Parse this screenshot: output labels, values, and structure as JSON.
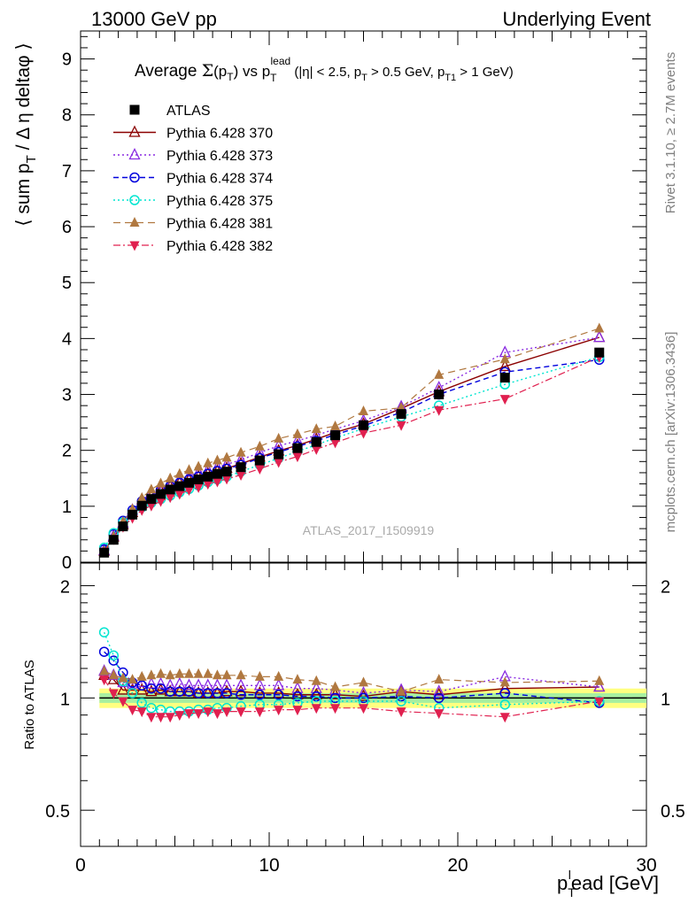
{
  "header": {
    "left": "13000 GeV pp",
    "right": "Underlying Event"
  },
  "side_labels": {
    "rivet": "Rivet 3.1.10, ≥ 2.7M events",
    "mcplots": "mcplots.cern.ch [arXiv:1306.3436]"
  },
  "chart_data": [
    {
      "type": "scatter",
      "title_parts": {
        "a": "Average ",
        "sigma": "Σ",
        "b": "(p",
        "b_sub": "T",
        "c": ") vs p",
        "c_sub": "T",
        "c_sup": "lead",
        "d": " (|η| < 2.5, p",
        "d_sub": "T",
        "e": " > 0.5 GeV, p",
        "e_sub": "T1",
        "f": " > 1 GeV)"
      },
      "ylabel_parts": {
        "a": "⟨ sum p",
        "sub": "T",
        "b": " / Δ η deltaφ ⟩"
      },
      "watermark": "ATLAS_2017_I1509919",
      "xlim": [
        0,
        30
      ],
      "ylim": [
        0,
        9.5
      ],
      "y_ticks": [
        "0",
        "1",
        "2",
        "3",
        "4",
        "5",
        "6",
        "7",
        "8",
        "9"
      ],
      "legend_position": "top-left",
      "x": [
        1.25,
        1.75,
        2.25,
        2.75,
        3.25,
        3.75,
        4.25,
        4.75,
        5.25,
        5.75,
        6.25,
        6.75,
        7.25,
        7.75,
        8.5,
        9.5,
        10.5,
        11.5,
        12.5,
        13.5,
        15,
        17,
        19,
        22.5,
        27.5
      ],
      "series": [
        {
          "name": "ATLAS",
          "color": "#000000",
          "marker": "filled-square",
          "values": [
            0.17,
            0.4,
            0.64,
            0.85,
            1.01,
            1.13,
            1.22,
            1.3,
            1.36,
            1.42,
            1.48,
            1.53,
            1.58,
            1.62,
            1.7,
            1.82,
            1.93,
            2.04,
            2.15,
            2.27,
            2.45,
            2.65,
            3.0,
            3.3,
            3.75
          ]
        },
        {
          "name": "Pythia 6.428 370",
          "color": "#8b0000",
          "marker": "open-triangle-up",
          "values": [
            0.2,
            0.45,
            0.67,
            0.89,
            1.06,
            1.18,
            1.28,
            1.35,
            1.42,
            1.48,
            1.53,
            1.58,
            1.63,
            1.68,
            1.76,
            1.88,
            1.99,
            2.09,
            2.2,
            2.32,
            2.47,
            2.75,
            3.05,
            3.5,
            4.02
          ]
        },
        {
          "name": "Pythia 6.428 373",
          "color": "#8a2be2",
          "marker": "open-triangle-up",
          "values": [
            0.21,
            0.47,
            0.7,
            0.93,
            1.11,
            1.24,
            1.33,
            1.41,
            1.48,
            1.54,
            1.6,
            1.65,
            1.7,
            1.75,
            1.83,
            1.96,
            2.08,
            2.17,
            2.27,
            2.38,
            2.53,
            2.78,
            3.12,
            3.75,
            4.02
          ]
        },
        {
          "name": "Pythia 6.428 374",
          "color": "#0000dd",
          "marker": "open-circle",
          "values": [
            0.23,
            0.5,
            0.74,
            0.93,
            1.09,
            1.2,
            1.29,
            1.36,
            1.42,
            1.48,
            1.53,
            1.58,
            1.63,
            1.67,
            1.74,
            1.86,
            1.97,
            2.07,
            2.17,
            2.28,
            2.44,
            2.68,
            3.0,
            3.4,
            3.62
          ]
        },
        {
          "name": "Pythia 6.428 375",
          "color": "#00e5d0",
          "marker": "open-circle",
          "values": [
            0.26,
            0.52,
            0.71,
            0.88,
            0.98,
            1.06,
            1.13,
            1.19,
            1.25,
            1.31,
            1.37,
            1.43,
            1.48,
            1.53,
            1.62,
            1.74,
            1.86,
            1.98,
            2.1,
            2.22,
            2.39,
            2.6,
            2.8,
            3.18,
            3.67
          ]
        },
        {
          "name": "Pythia 6.428 381",
          "color": "#b07840",
          "marker": "filled-triangle-up",
          "values": [
            0.2,
            0.46,
            0.72,
            0.95,
            1.15,
            1.3,
            1.41,
            1.5,
            1.58,
            1.65,
            1.71,
            1.77,
            1.82,
            1.87,
            1.96,
            2.07,
            2.21,
            2.29,
            2.38,
            2.43,
            2.7,
            2.76,
            3.35,
            3.63,
            4.18
          ]
        },
        {
          "name": "Pythia 6.428 382",
          "color": "#e0204f",
          "marker": "filled-triangle-down",
          "values": [
            0.19,
            0.41,
            0.63,
            0.79,
            0.93,
            1.01,
            1.09,
            1.16,
            1.22,
            1.29,
            1.34,
            1.4,
            1.44,
            1.49,
            1.56,
            1.67,
            1.79,
            1.89,
            2.02,
            2.14,
            2.31,
            2.45,
            2.72,
            2.92,
            3.67
          ]
        }
      ]
    },
    {
      "type": "scatter",
      "ylabel": "Ratio to ATLAS",
      "xlabel_parts": {
        "a": "p",
        "sub": "T",
        "sup": "l",
        "b": "ead [GeV]"
      },
      "xlim": [
        0,
        30
      ],
      "x_ticks": [
        "0",
        "10",
        "20",
        "30"
      ],
      "y_scale": "log",
      "ylim": [
        0.4,
        2.3
      ],
      "y_ticks": [
        "0.5",
        "1",
        "2"
      ],
      "band": {
        "yellow": [
          0.94,
          1.06
        ],
        "green": [
          0.97,
          1.03
        ]
      },
      "x": [
        1.25,
        1.75,
        2.25,
        2.75,
        3.25,
        3.75,
        4.25,
        4.75,
        5.25,
        5.75,
        6.25,
        6.75,
        7.25,
        7.75,
        8.5,
        9.5,
        10.5,
        11.5,
        12.5,
        13.5,
        15,
        17,
        19,
        22.5,
        27.5
      ],
      "series": [
        {
          "name": "Pythia 6.428 370",
          "values": [
            1.15,
            1.12,
            1.05,
            1.05,
            1.05,
            1.04,
            1.05,
            1.04,
            1.04,
            1.04,
            1.03,
            1.03,
            1.03,
            1.04,
            1.04,
            1.03,
            1.03,
            1.02,
            1.02,
            1.02,
            1.01,
            1.04,
            1.02,
            1.06,
            1.07
          ]
        },
        {
          "name": "Pythia 6.428 373",
          "values": [
            1.18,
            1.15,
            1.1,
            1.09,
            1.1,
            1.09,
            1.09,
            1.08,
            1.09,
            1.08,
            1.08,
            1.08,
            1.08,
            1.08,
            1.08,
            1.08,
            1.08,
            1.06,
            1.06,
            1.05,
            1.03,
            1.05,
            1.04,
            1.14,
            1.07
          ]
        },
        {
          "name": "Pythia 6.428 374",
          "values": [
            1.33,
            1.26,
            1.17,
            1.1,
            1.08,
            1.06,
            1.06,
            1.04,
            1.04,
            1.04,
            1.03,
            1.03,
            1.03,
            1.03,
            1.02,
            1.02,
            1.02,
            1.01,
            1.01,
            1.0,
            1.0,
            1.01,
            1.0,
            1.03,
            0.97
          ]
        },
        {
          "name": "Pythia 6.428 375",
          "values": [
            1.5,
            1.3,
            1.11,
            1.03,
            0.97,
            0.94,
            0.93,
            0.92,
            0.92,
            0.92,
            0.93,
            0.93,
            0.94,
            0.94,
            0.95,
            0.96,
            0.96,
            0.97,
            0.98,
            0.98,
            0.98,
            0.98,
            0.94,
            0.96,
            0.98
          ]
        },
        {
          "name": "Pythia 6.428 381",
          "values": [
            1.18,
            1.15,
            1.13,
            1.12,
            1.14,
            1.15,
            1.16,
            1.15,
            1.16,
            1.16,
            1.16,
            1.16,
            1.15,
            1.15,
            1.15,
            1.14,
            1.14,
            1.12,
            1.11,
            1.07,
            1.1,
            1.04,
            1.12,
            1.1,
            1.11
          ]
        },
        {
          "name": "Pythia 6.428 382",
          "values": [
            1.12,
            1.03,
            0.98,
            0.93,
            0.92,
            0.89,
            0.89,
            0.89,
            0.9,
            0.91,
            0.91,
            0.92,
            0.91,
            0.92,
            0.92,
            0.92,
            0.93,
            0.93,
            0.94,
            0.94,
            0.94,
            0.92,
            0.91,
            0.89,
            0.98
          ]
        }
      ]
    }
  ]
}
